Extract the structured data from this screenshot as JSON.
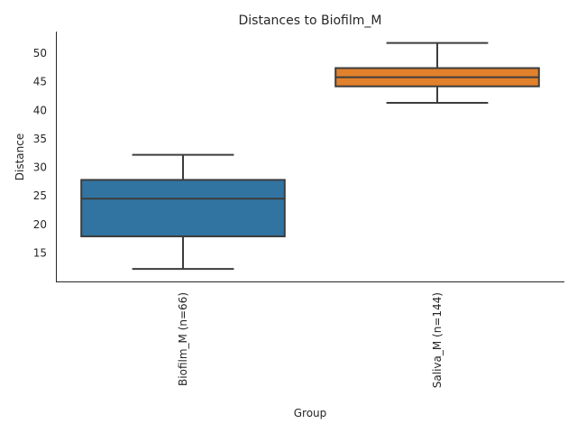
{
  "chart_data": {
    "type": "box",
    "title": "Distances to Biofilm_M",
    "xlabel": "Group",
    "ylabel": "Distance",
    "ylim": [
      10.0,
      53.8
    ],
    "yticks": [
      15,
      20,
      25,
      30,
      35,
      40,
      45,
      50
    ],
    "grid": false,
    "categories": [
      "Biofilm_M (n=66)",
      "Saliva_M (n=144)"
    ],
    "boxes": [
      {
        "name": "Biofilm_M (n=66)",
        "whisker_low": 12.2,
        "q1": 17.9,
        "median": 24.5,
        "q3": 27.8,
        "whisker_high": 32.2,
        "color": "#3274a1"
      },
      {
        "name": "Saliva_M (n=144)",
        "whisker_low": 41.3,
        "q1": 44.2,
        "median": 45.8,
        "q3": 47.4,
        "whisker_high": 51.8,
        "color": "#e1812c"
      }
    ]
  }
}
